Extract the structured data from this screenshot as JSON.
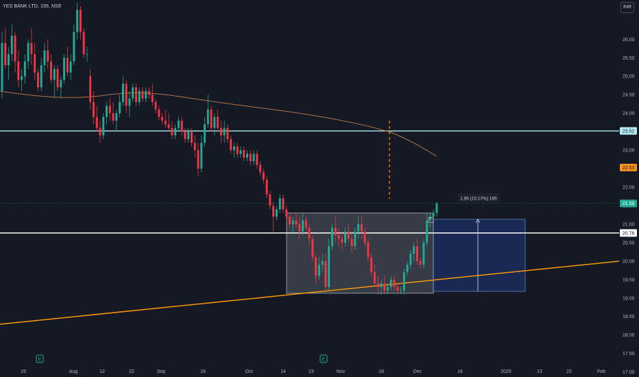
{
  "header": {
    "symbol": "YES BANK LTD, 195, NSE",
    "currency": "INR"
  },
  "colors": {
    "background": "#151924",
    "up": "#22ab94",
    "down": "#f23645",
    "ma": "#b27344",
    "trendline": "#ff9800",
    "hline": "#b2ebf2",
    "axis_text": "#b2b5be"
  },
  "chart_data": {
    "type": "candlestick",
    "title": "YES BANK LTD, 195, NSE",
    "currency": "INR",
    "y_axis": {
      "range": [
        16.9,
        27.1
      ],
      "ticks": [
        "26.00",
        "25.50",
        "25.00",
        "24.50",
        "24.00",
        "23.50",
        "23.00",
        "22.50",
        "22.00",
        "21.50",
        "21.00",
        "20.50",
        "20.00",
        "19.50",
        "19.00",
        "18.50",
        "18.00",
        "17.50",
        "17.00"
      ]
    },
    "x_axis": {
      "labels": [
        "15",
        "Aug",
        "12",
        "22",
        "Sep",
        "16",
        "Oct",
        "14",
        "23",
        "Nov",
        "18",
        "Dec",
        "16",
        "2025",
        "13",
        "22",
        "Feb"
      ]
    },
    "price_labels": [
      {
        "value": 23.52,
        "text": "23.52",
        "kind": "line"
      },
      {
        "value": 22.53,
        "text": "22.53",
        "kind": "ma"
      },
      {
        "value": 21.56,
        "text": "21.56",
        "kind": "last"
      },
      {
        "value": 20.76,
        "text": "20.76",
        "kind": "level"
      }
    ],
    "horizontal_lines": [
      23.52,
      20.76
    ],
    "last_price": 21.56,
    "range_box": {
      "top": 21.3,
      "bottom": 19.13
    },
    "measure": {
      "label": "1.95 (10.17%) 195",
      "from": 19.18,
      "to": 21.13
    },
    "candles": [
      [
        24.6,
        26.2,
        24.4,
        25.9
      ],
      [
        25.9,
        26.3,
        25.2,
        25.3
      ],
      [
        25.3,
        25.8,
        24.9,
        25.6
      ],
      [
        25.6,
        26.4,
        25.4,
        26.1
      ],
      [
        26.1,
        26.2,
        25.1,
        25.4
      ],
      [
        25.4,
        25.7,
        24.7,
        24.9
      ],
      [
        24.9,
        25.2,
        24.6,
        25.0
      ],
      [
        25.0,
        25.6,
        24.8,
        25.4
      ],
      [
        25.4,
        26.0,
        25.2,
        25.9
      ],
      [
        25.9,
        26.3,
        25.3,
        25.6
      ],
      [
        25.6,
        25.9,
        24.9,
        25.1
      ],
      [
        25.1,
        25.2,
        24.6,
        24.7
      ],
      [
        24.7,
        25.5,
        24.6,
        25.3
      ],
      [
        25.3,
        25.9,
        25.1,
        25.7
      ],
      [
        25.7,
        26.0,
        25.2,
        25.4
      ],
      [
        25.4,
        25.6,
        24.8,
        24.9
      ],
      [
        24.9,
        25.3,
        24.4,
        25.2
      ],
      [
        25.2,
        25.3,
        24.6,
        24.7
      ],
      [
        24.7,
        25.0,
        24.4,
        24.9
      ],
      [
        24.9,
        25.6,
        24.8,
        25.5
      ],
      [
        25.5,
        25.8,
        25.0,
        25.1
      ],
      [
        25.1,
        25.6,
        24.9,
        25.4
      ],
      [
        25.4,
        26.4,
        25.3,
        26.2
      ],
      [
        26.2,
        27.0,
        26.0,
        26.8
      ],
      [
        26.8,
        26.9,
        26.0,
        26.2
      ],
      [
        26.2,
        26.3,
        25.5,
        25.6
      ],
      [
        25.6,
        25.8,
        25.4,
        25.6
      ],
      [
        25.0,
        25.2,
        24.1,
        24.3
      ],
      [
        24.3,
        24.6,
        23.7,
        23.9
      ],
      [
        23.9,
        24.2,
        23.5,
        23.6
      ],
      [
        23.6,
        23.8,
        23.2,
        23.4
      ],
      [
        23.4,
        24.0,
        23.3,
        23.9
      ],
      [
        23.9,
        24.3,
        23.7,
        24.2
      ],
      [
        24.2,
        24.4,
        23.8,
        24.0
      ],
      [
        24.0,
        24.3,
        23.7,
        23.8
      ],
      [
        23.8,
        24.1,
        23.5,
        24.0
      ],
      [
        24.0,
        24.5,
        23.9,
        24.3
      ],
      [
        24.3,
        25.0,
        24.2,
        24.8
      ],
      [
        24.8,
        24.9,
        24.0,
        24.2
      ],
      [
        24.2,
        24.6,
        23.9,
        24.4
      ],
      [
        24.4,
        24.8,
        24.3,
        24.7
      ],
      [
        24.7,
        24.8,
        24.2,
        24.3
      ],
      [
        24.3,
        24.7,
        24.2,
        24.6
      ],
      [
        24.6,
        24.7,
        24.3,
        24.4
      ],
      [
        24.4,
        24.7,
        24.3,
        24.6
      ],
      [
        24.6,
        24.7,
        24.4,
        24.5
      ],
      [
        24.5,
        24.8,
        24.2,
        24.3
      ],
      [
        24.3,
        24.4,
        24.0,
        24.1
      ],
      [
        24.1,
        24.2,
        23.8,
        23.9
      ],
      [
        23.9,
        24.0,
        23.7,
        23.8
      ],
      [
        23.8,
        24.1,
        23.6,
        23.7
      ],
      [
        23.7,
        24.0,
        23.5,
        23.6
      ],
      [
        23.6,
        23.8,
        23.3,
        23.4
      ],
      [
        23.4,
        23.7,
        23.3,
        23.6
      ],
      [
        23.6,
        23.9,
        23.5,
        23.8
      ],
      [
        23.8,
        23.9,
        23.4,
        23.5
      ],
      [
        23.5,
        23.6,
        23.2,
        23.3
      ],
      [
        23.3,
        23.6,
        23.2,
        23.5
      ],
      [
        23.5,
        23.6,
        23.1,
        23.2
      ],
      [
        23.2,
        23.4,
        22.8,
        23.0
      ],
      [
        23.0,
        23.2,
        22.3,
        22.5
      ],
      [
        22.5,
        23.4,
        22.4,
        23.2
      ],
      [
        23.2,
        23.9,
        23.1,
        23.7
      ],
      [
        23.7,
        24.5,
        23.6,
        24.1
      ],
      [
        24.1,
        24.2,
        23.5,
        23.6
      ],
      [
        23.6,
        24.0,
        23.4,
        23.9
      ],
      [
        23.9,
        24.1,
        23.5,
        23.6
      ],
      [
        23.6,
        23.8,
        23.2,
        23.4
      ],
      [
        23.4,
        23.8,
        23.2,
        23.6
      ],
      [
        23.6,
        23.7,
        23.2,
        23.3
      ],
      [
        23.3,
        23.4,
        22.9,
        23.0
      ],
      [
        23.0,
        23.2,
        22.8,
        23.1
      ],
      [
        23.1,
        23.2,
        22.8,
        22.9
      ],
      [
        22.9,
        23.1,
        22.8,
        23.0
      ],
      [
        23.0,
        23.1,
        22.7,
        22.8
      ],
      [
        22.8,
        23.0,
        22.7,
        22.9
      ],
      [
        22.9,
        23.0,
        22.6,
        22.7
      ],
      [
        22.7,
        23.0,
        22.6,
        22.9
      ],
      [
        22.9,
        23.0,
        22.5,
        22.6
      ],
      [
        22.6,
        22.7,
        22.3,
        22.4
      ],
      [
        22.4,
        22.5,
        22.1,
        22.2
      ],
      [
        22.2,
        22.3,
        21.7,
        21.8
      ],
      [
        21.8,
        21.9,
        21.4,
        21.5
      ],
      [
        21.5,
        21.6,
        20.8,
        21.2
      ],
      [
        21.2,
        21.5,
        21.1,
        21.4
      ],
      [
        21.4,
        21.8,
        21.3,
        21.7
      ],
      [
        21.7,
        21.8,
        21.3,
        21.4
      ],
      [
        21.4,
        21.5,
        21.1,
        21.2
      ],
      [
        21.2,
        21.3,
        20.9,
        21.0
      ],
      [
        21.0,
        21.2,
        20.8,
        21.1
      ],
      [
        21.1,
        21.3,
        20.9,
        21.0
      ],
      [
        21.0,
        21.2,
        20.6,
        20.8
      ],
      [
        20.8,
        21.3,
        20.7,
        21.1
      ],
      [
        21.1,
        21.2,
        20.8,
        20.9
      ],
      [
        20.9,
        21.0,
        20.4,
        20.6
      ],
      [
        20.6,
        20.7,
        20.0,
        20.1
      ],
      [
        20.1,
        20.2,
        19.4,
        19.6
      ],
      [
        19.6,
        20.1,
        19.5,
        19.9
      ],
      [
        19.9,
        20.2,
        19.7,
        20.0
      ],
      [
        20.0,
        20.2,
        19.2,
        19.3
      ],
      [
        19.3,
        20.6,
        19.2,
        20.4
      ],
      [
        20.4,
        21.0,
        20.3,
        20.9
      ],
      [
        20.9,
        21.2,
        20.5,
        20.7
      ],
      [
        20.7,
        20.9,
        20.4,
        20.6
      ],
      [
        20.6,
        20.8,
        20.3,
        20.5
      ],
      [
        20.5,
        20.9,
        20.4,
        20.8
      ],
      [
        20.8,
        21.0,
        20.5,
        20.6
      ],
      [
        20.6,
        20.8,
        20.2,
        20.4
      ],
      [
        20.4,
        20.9,
        20.3,
        20.8
      ],
      [
        20.8,
        21.2,
        20.6,
        21.0
      ],
      [
        21.0,
        21.2,
        20.6,
        20.8
      ],
      [
        20.8,
        20.9,
        20.4,
        20.5
      ],
      [
        20.5,
        20.6,
        20.0,
        20.1
      ],
      [
        20.1,
        20.2,
        19.6,
        19.7
      ],
      [
        19.7,
        19.9,
        19.3,
        19.4
      ],
      [
        19.4,
        19.6,
        19.1,
        19.3
      ],
      [
        19.3,
        19.5,
        19.1,
        19.4
      ],
      [
        19.4,
        19.6,
        19.1,
        19.2
      ],
      [
        19.2,
        19.4,
        19.1,
        19.3
      ],
      [
        19.3,
        19.6,
        19.2,
        19.5
      ],
      [
        19.5,
        19.6,
        19.2,
        19.3
      ],
      [
        19.3,
        19.4,
        19.1,
        19.2
      ],
      [
        19.2,
        19.3,
        19.1,
        19.2
      ],
      [
        19.2,
        19.8,
        19.1,
        19.7
      ],
      [
        19.7,
        20.0,
        19.6,
        19.9
      ],
      [
        19.9,
        20.3,
        19.8,
        20.2
      ],
      [
        20.2,
        20.5,
        20.0,
        20.4
      ],
      [
        20.4,
        20.6,
        19.9,
        20.0
      ],
      [
        20.0,
        20.1,
        19.8,
        19.9
      ],
      [
        19.9,
        20.6,
        19.8,
        20.5
      ],
      [
        20.5,
        21.3,
        20.4,
        21.1
      ],
      [
        21.1,
        21.3,
        20.9,
        21.2
      ],
      [
        21.2,
        21.4,
        21.1,
        21.3
      ],
      [
        21.3,
        21.6,
        21.2,
        21.56
      ]
    ]
  }
}
